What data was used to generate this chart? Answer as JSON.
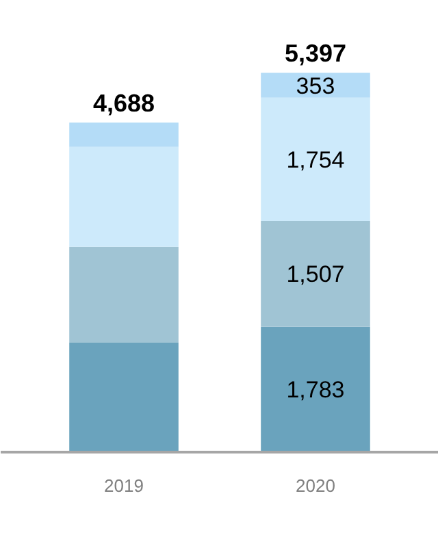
{
  "chart_data": {
    "type": "bar",
    "stacked": true,
    "categories": [
      "2019",
      "2020"
    ],
    "tick_labels": "x",
    "grid": false,
    "series": [
      {
        "color": "#6aa3bd",
        "values": [
          1558,
          1783
        ],
        "value_labels": [
          null,
          "1,783"
        ]
      },
      {
        "color": "#a0c4d4",
        "values": [
          1363,
          1507
        ],
        "value_labels": [
          null,
          "1,507"
        ]
      },
      {
        "color": "#cdeafb",
        "values": [
          1422,
          1754
        ],
        "value_labels": [
          null,
          "1,754"
        ]
      },
      {
        "color": "#b4dcf7",
        "values": [
          345,
          353
        ],
        "value_labels": [
          null,
          "353"
        ]
      }
    ],
    "totals": [
      "4,688",
      "5,397"
    ]
  }
}
